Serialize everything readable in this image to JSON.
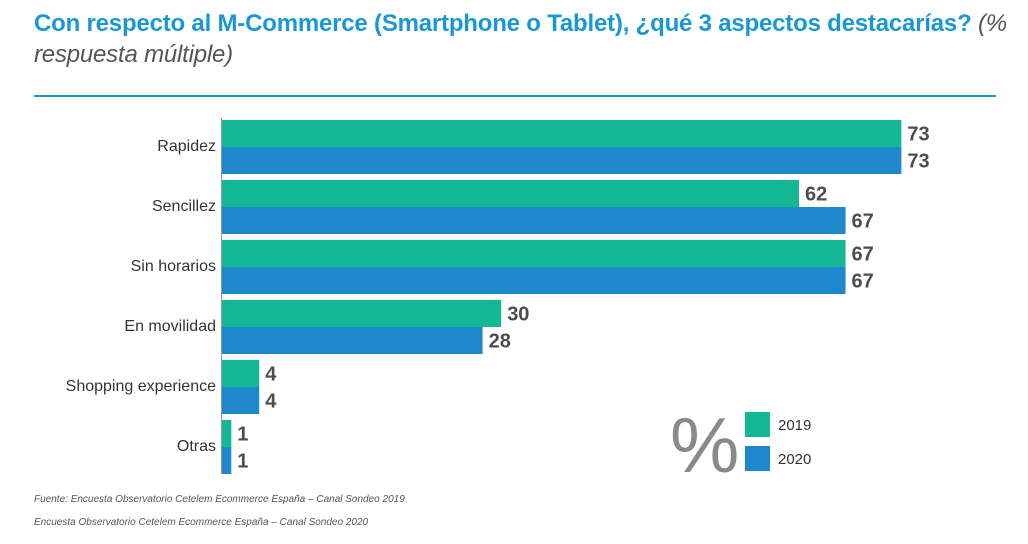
{
  "title": {
    "main": "Con respecto al M-Commerce (Smartphone o Tablet), ¿qué 3 aspectos destacarías?",
    "subtitle": "(% respuesta múltiple)"
  },
  "unit_symbol": "%",
  "footnotes": {
    "source_2019": "Fuente: Encuesta Observatorio Cetelem Ecommerce España – Canal Sondeo 2019",
    "source_2020": "Encuesta Observatorio Cetelem Ecommerce España – Canal Sondeo 2020"
  },
  "chart_data": {
    "type": "bar",
    "orientation": "horizontal",
    "categories": [
      "Rapidez",
      "Sencillez",
      "Sin horarios",
      "En movilidad",
      "Shopping experience",
      "Otras"
    ],
    "series": [
      {
        "name": "2019",
        "color": "#14b894",
        "values": [
          73,
          62,
          67,
          30,
          4,
          1
        ]
      },
      {
        "name": "2020",
        "color": "#1f87cc",
        "values": [
          73,
          67,
          67,
          28,
          4,
          1
        ]
      }
    ],
    "xlim": [
      0,
      75
    ],
    "legend_position": "bottom-right",
    "grid": false
  }
}
